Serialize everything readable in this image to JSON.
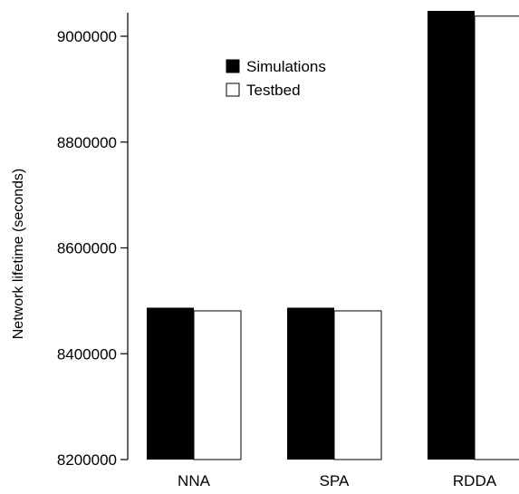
{
  "chart_data": {
    "type": "bar",
    "title": "",
    "xlabel": "",
    "ylabel": "Network lifetime (seconds)",
    "categories": [
      "NNA",
      "SPA",
      "RDDA"
    ],
    "series": [
      {
        "name": "Simulations",
        "values": [
          8487000,
          8487000,
          9048000
        ],
        "color": "#000000"
      },
      {
        "name": "Testbed",
        "values": [
          8481000,
          8481000,
          9038000
        ],
        "color": "#ffffff"
      }
    ],
    "ylim": [
      8200000,
      9050000
    ],
    "yticks": [
      8200000,
      8400000,
      8600000,
      8800000,
      9000000
    ],
    "ytick_labels": [
      "8200000",
      "8400000",
      "8600000",
      "8800000",
      "9000000"
    ],
    "legend_position": "top-center",
    "grid": false
  }
}
